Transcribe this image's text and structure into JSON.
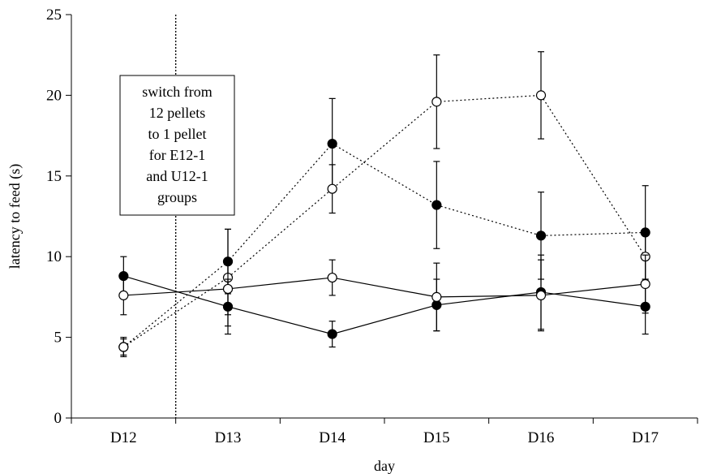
{
  "chart_data": {
    "type": "line",
    "title": "",
    "xlabel": "day",
    "ylabel": "latency to feed (s)",
    "categories": [
      "D12",
      "D13",
      "D14",
      "D15",
      "D16",
      "D17"
    ],
    "ylim": [
      0,
      25
    ],
    "yticks": [
      "0",
      "5",
      "10",
      "15",
      "20",
      "25"
    ],
    "grid": false,
    "legend": "none",
    "annotation": {
      "lines": [
        "switch from",
        "12 pellets",
        "to 1 pellet",
        "for E12-1",
        "and U12-1",
        "groups"
      ],
      "divider_between": [
        "D12",
        "D13"
      ]
    },
    "series": [
      {
        "marker": "filled",
        "line": "dotted",
        "values": [
          4.4,
          9.7,
          17.0,
          13.2,
          11.3,
          11.5
        ],
        "errors": [
          0.5,
          2.0,
          2.8,
          2.7,
          2.7,
          2.9
        ]
      },
      {
        "marker": "open",
        "line": "dotted",
        "values": [
          4.4,
          8.7,
          14.2,
          19.6,
          20.0,
          10.0
        ],
        "errors": [
          0.6,
          3.0,
          1.5,
          2.9,
          2.7,
          1.5
        ]
      },
      {
        "marker": "filled",
        "line": "solid",
        "values": [
          8.8,
          6.9,
          5.2,
          7.0,
          7.8,
          6.9
        ],
        "errors": [
          1.2,
          1.7,
          0.8,
          1.6,
          2.3,
          1.7
        ]
      },
      {
        "marker": "open",
        "line": "solid",
        "values": [
          7.6,
          8.0,
          8.7,
          7.5,
          7.6,
          8.3
        ],
        "errors": [
          1.2,
          1.6,
          1.1,
          2.1,
          2.2,
          1.8
        ]
      }
    ],
    "colors": {
      "ink": "#000000",
      "background": "#ffffff"
    }
  }
}
